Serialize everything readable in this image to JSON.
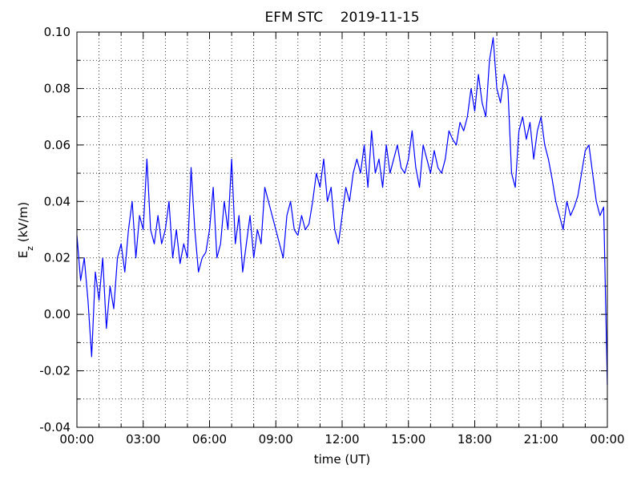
{
  "chart_data": {
    "type": "line",
    "title": "EFM STC    2019-11-15",
    "xlabel": "time (UT)",
    "ylabel": {
      "main": "E",
      "sub": "z",
      "unit": " (kV/m)"
    },
    "color": "#0000ff",
    "x": [
      0,
      10,
      20,
      30,
      40,
      50,
      60,
      70,
      80,
      90,
      100,
      110,
      120,
      130,
      140,
      150,
      160,
      170,
      180,
      190,
      200,
      210,
      220,
      230,
      240,
      250,
      260,
      270,
      280,
      290,
      300,
      310,
      320,
      330,
      340,
      350,
      360,
      370,
      380,
      390,
      400,
      410,
      420,
      430,
      440,
      450,
      460,
      470,
      480,
      490,
      500,
      510,
      520,
      530,
      540,
      550,
      560,
      570,
      580,
      590,
      600,
      610,
      620,
      630,
      640,
      650,
      660,
      670,
      680,
      690,
      700,
      710,
      720,
      730,
      740,
      750,
      760,
      770,
      780,
      790,
      800,
      810,
      820,
      830,
      840,
      850,
      860,
      870,
      880,
      890,
      900,
      910,
      920,
      930,
      940,
      950,
      960,
      970,
      980,
      990,
      1000,
      1010,
      1020,
      1030,
      1040,
      1050,
      1060,
      1070,
      1080,
      1090,
      1100,
      1110,
      1120,
      1130,
      1140,
      1150,
      1160,
      1170,
      1180,
      1190,
      1200,
      1210,
      1220,
      1230,
      1240,
      1250,
      1260,
      1270,
      1280,
      1290,
      1300,
      1310,
      1320,
      1330,
      1340,
      1350,
      1360,
      1370,
      1380,
      1390,
      1400,
      1410,
      1420,
      1430,
      1440
    ],
    "values": [
      0.028,
      0.012,
      0.02,
      0.005,
      -0.015,
      0.015,
      0.005,
      0.02,
      -0.005,
      0.01,
      0.002,
      0.02,
      0.025,
      0.015,
      0.03,
      0.04,
      0.02,
      0.035,
      0.03,
      0.055,
      0.03,
      0.025,
      0.035,
      0.025,
      0.03,
      0.04,
      0.02,
      0.03,
      0.018,
      0.025,
      0.02,
      0.052,
      0.03,
      0.015,
      0.02,
      0.022,
      0.03,
      0.045,
      0.02,
      0.025,
      0.04,
      0.03,
      0.055,
      0.025,
      0.035,
      0.015,
      0.025,
      0.035,
      0.02,
      0.03,
      0.025,
      0.045,
      0.04,
      0.035,
      0.03,
      0.025,
      0.02,
      0.035,
      0.04,
      0.03,
      0.028,
      0.035,
      0.03,
      0.032,
      0.04,
      0.05,
      0.045,
      0.055,
      0.04,
      0.045,
      0.03,
      0.025,
      0.035,
      0.045,
      0.04,
      0.05,
      0.055,
      0.05,
      0.06,
      0.045,
      0.065,
      0.05,
      0.055,
      0.045,
      0.06,
      0.05,
      0.055,
      0.06,
      0.052,
      0.05,
      0.055,
      0.065,
      0.052,
      0.045,
      0.06,
      0.055,
      0.05,
      0.058,
      0.052,
      0.05,
      0.055,
      0.065,
      0.062,
      0.06,
      0.068,
      0.065,
      0.07,
      0.08,
      0.072,
      0.085,
      0.075,
      0.07,
      0.09,
      0.098,
      0.08,
      0.075,
      0.085,
      0.08,
      0.05,
      0.045,
      0.065,
      0.07,
      0.062,
      0.068,
      0.055,
      0.065,
      0.07,
      0.06,
      0.055,
      0.048,
      0.04,
      0.035,
      0.03,
      0.04,
      0.035,
      0.038,
      0.042,
      0.05,
      0.058,
      0.06,
      0.05,
      0.04,
      0.035,
      0.038,
      -0.025
    ],
    "xlim": [
      0,
      1440
    ],
    "xticks": [
      {
        "value": 0,
        "label": "00:00"
      },
      {
        "value": 180,
        "label": "03:00"
      },
      {
        "value": 360,
        "label": "06:00"
      },
      {
        "value": 540,
        "label": "09:00"
      },
      {
        "value": 720,
        "label": "12:00"
      },
      {
        "value": 900,
        "label": "15:00"
      },
      {
        "value": 1080,
        "label": "18:00"
      },
      {
        "value": 1260,
        "label": "21:00"
      },
      {
        "value": 1440,
        "label": "00:00"
      }
    ],
    "xminorticks": [
      60,
      120,
      240,
      300,
      420,
      480,
      600,
      660,
      780,
      840,
      960,
      1020,
      1140,
      1200,
      1320,
      1380
    ],
    "ylim": [
      -0.04,
      0.1
    ],
    "yticks": [
      {
        "value": -0.04,
        "label": "-0.04"
      },
      {
        "value": -0.02,
        "label": "-0.02"
      },
      {
        "value": 0,
        "label": "0.00"
      },
      {
        "value": 0.02,
        "label": "0.02"
      },
      {
        "value": 0.04,
        "label": "0.04"
      },
      {
        "value": 0.06,
        "label": "0.06"
      },
      {
        "value": 0.08,
        "label": "0.08"
      },
      {
        "value": 0.1,
        "label": "0.10"
      }
    ],
    "yminorticks": [
      -0.03,
      -0.01,
      0.01,
      0.03,
      0.05,
      0.07,
      0.09
    ],
    "grid": true
  }
}
